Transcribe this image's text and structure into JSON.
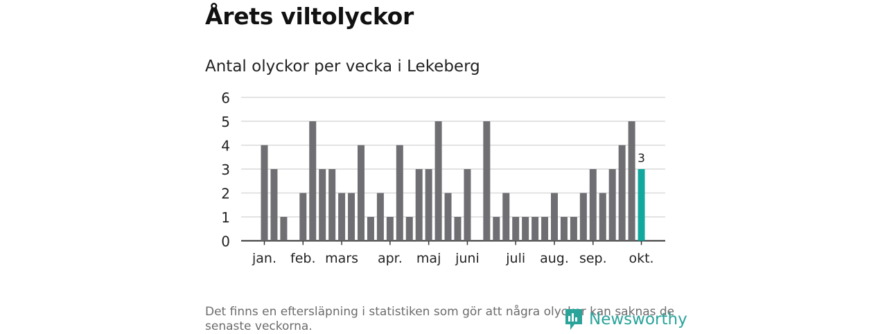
{
  "header": {
    "title": "Årets viltolyckor"
  },
  "chart_data": {
    "type": "bar",
    "title": "Antal olyckor per vecka i Lekeberg",
    "xlabel": "",
    "ylabel": "",
    "ylim": [
      0,
      6
    ],
    "yticks": [
      0,
      1,
      2,
      3,
      4,
      5,
      6
    ],
    "weeks": [
      1,
      2,
      3,
      4,
      5,
      6,
      7,
      8,
      9,
      10,
      11,
      12,
      13,
      14,
      15,
      16,
      17,
      18,
      19,
      20,
      21,
      22,
      23,
      24,
      25,
      26,
      27,
      28,
      29,
      30,
      31,
      32,
      33,
      34,
      35,
      36,
      37,
      38,
      39,
      40
    ],
    "values": [
      4,
      3,
      1,
      0,
      2,
      5,
      3,
      3,
      2,
      2,
      4,
      1,
      2,
      1,
      4,
      1,
      3,
      3,
      5,
      2,
      1,
      3,
      0,
      5,
      1,
      2,
      1,
      1,
      1,
      1,
      2,
      1,
      1,
      2,
      3,
      2,
      3,
      4,
      5,
      3
    ],
    "month_labels": [
      {
        "label": "jan.",
        "week": 1
      },
      {
        "label": "feb.",
        "week": 5
      },
      {
        "label": "mars",
        "week": 9
      },
      {
        "label": "apr.",
        "week": 14
      },
      {
        "label": "maj",
        "week": 18
      },
      {
        "label": "juni",
        "week": 22
      },
      {
        "label": "juli",
        "week": 27
      },
      {
        "label": "aug.",
        "week": 31
      },
      {
        "label": "sep.",
        "week": 35
      },
      {
        "label": "okt.",
        "week": 40
      }
    ],
    "highlight": {
      "week": 40,
      "label": "3"
    },
    "colors": {
      "bar": "#6f6e72",
      "highlight": "#13a89e",
      "grid": "#d9d9d9",
      "axis": "#333333"
    }
  },
  "footer": {
    "note": "Det finns en eftersläpning i statistiken som gör att några olyckor kan saknas de senaste veckorna.",
    "brand": "Newsworthy"
  }
}
